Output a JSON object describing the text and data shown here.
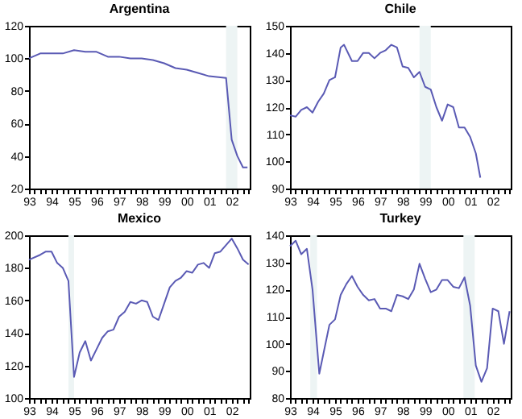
{
  "chart_data": [
    {
      "type": "line",
      "title": "Argentina",
      "xlim": [
        1993,
        2002.8
      ],
      "ylim": [
        20,
        120
      ],
      "yticks": [
        20,
        40,
        60,
        80,
        100,
        120
      ],
      "xticks": [
        {
          "value": 1993,
          "label": "93"
        },
        {
          "value": 1993.25,
          "label": null
        },
        {
          "value": 1993.5,
          "label": null
        },
        {
          "value": 1993.75,
          "label": null
        },
        {
          "value": 1994,
          "label": "94"
        },
        {
          "value": 1994.25,
          "label": null
        },
        {
          "value": 1994.5,
          "label": null
        },
        {
          "value": 1994.75,
          "label": null
        },
        {
          "value": 1995,
          "label": "95"
        },
        {
          "value": 1995.25,
          "label": null
        },
        {
          "value": 1995.5,
          "label": null
        },
        {
          "value": 1995.75,
          "label": null
        },
        {
          "value": 1996,
          "label": "96"
        },
        {
          "value": 1996.25,
          "label": null
        },
        {
          "value": 1996.5,
          "label": null
        },
        {
          "value": 1996.75,
          "label": null
        },
        {
          "value": 1997,
          "label": "97"
        },
        {
          "value": 1997.25,
          "label": null
        },
        {
          "value": 1997.5,
          "label": null
        },
        {
          "value": 1997.75,
          "label": null
        },
        {
          "value": 1998,
          "label": "98"
        },
        {
          "value": 1998.25,
          "label": null
        },
        {
          "value": 1998.5,
          "label": null
        },
        {
          "value": 1998.75,
          "label": null
        },
        {
          "value": 1999,
          "label": "99"
        },
        {
          "value": 1999.25,
          "label": null
        },
        {
          "value": 1999.5,
          "label": null
        },
        {
          "value": 1999.75,
          "label": null
        },
        {
          "value": 2000,
          "label": "00"
        },
        {
          "value": 2000.25,
          "label": null
        },
        {
          "value": 2000.5,
          "label": null
        },
        {
          "value": 2000.75,
          "label": null
        },
        {
          "value": 2001,
          "label": "01"
        },
        {
          "value": 2001.25,
          "label": null
        },
        {
          "value": 2001.5,
          "label": null
        },
        {
          "value": 2001.75,
          "label": null
        },
        {
          "value": 2002,
          "label": "02"
        },
        {
          "value": 2002.25,
          "label": null
        },
        {
          "value": 2002.5,
          "label": null
        },
        {
          "value": 2002.75,
          "label": null
        }
      ],
      "bands": [
        {
          "axis": "x",
          "from": 2001.75,
          "to": 2002.25,
          "color": "#edf4f4"
        }
      ],
      "series": [
        {
          "color": "#5a5ab4",
          "x": [
            1993,
            1993.5,
            1994,
            1994.5,
            1995,
            1995.5,
            1996,
            1996.5,
            1997,
            1997.5,
            1998,
            1998.5,
            1999,
            1999.5,
            2000,
            2000.5,
            2001,
            2001.75,
            2002,
            2002.25,
            2002.5,
            2002.7
          ],
          "values": [
            100,
            103,
            103,
            103,
            105,
            104,
            104,
            101,
            101,
            100,
            100,
            99,
            97,
            94,
            93,
            91,
            89,
            88,
            50,
            40,
            33,
            33
          ]
        }
      ]
    },
    {
      "type": "line",
      "title": "Chile",
      "xlim": [
        1993,
        2002.8
      ],
      "ylim": [
        90,
        150
      ],
      "yticks": [
        90,
        100,
        110,
        120,
        130,
        140,
        150
      ],
      "xticks": [
        {
          "value": 1993,
          "label": "93"
        },
        {
          "value": 1993.25,
          "label": null
        },
        {
          "value": 1993.5,
          "label": null
        },
        {
          "value": 1993.75,
          "label": null
        },
        {
          "value": 1994,
          "label": "94"
        },
        {
          "value": 1994.25,
          "label": null
        },
        {
          "value": 1994.5,
          "label": null
        },
        {
          "value": 1994.75,
          "label": null
        },
        {
          "value": 1995,
          "label": "95"
        },
        {
          "value": 1995.25,
          "label": null
        },
        {
          "value": 1995.5,
          "label": null
        },
        {
          "value": 1995.75,
          "label": null
        },
        {
          "value": 1996,
          "label": "96"
        },
        {
          "value": 1996.25,
          "label": null
        },
        {
          "value": 1996.5,
          "label": null
        },
        {
          "value": 1996.75,
          "label": null
        },
        {
          "value": 1997,
          "label": "97"
        },
        {
          "value": 1997.25,
          "label": null
        },
        {
          "value": 1997.5,
          "label": null
        },
        {
          "value": 1997.75,
          "label": null
        },
        {
          "value": 1998,
          "label": "98"
        },
        {
          "value": 1998.25,
          "label": null
        },
        {
          "value": 1998.5,
          "label": null
        },
        {
          "value": 1998.75,
          "label": null
        },
        {
          "value": 1999,
          "label": "99"
        },
        {
          "value": 1999.25,
          "label": null
        },
        {
          "value": 1999.5,
          "label": null
        },
        {
          "value": 1999.75,
          "label": null
        },
        {
          "value": 2000,
          "label": "00"
        },
        {
          "value": 2000.25,
          "label": null
        },
        {
          "value": 2000.5,
          "label": null
        },
        {
          "value": 2000.75,
          "label": null
        },
        {
          "value": 2001,
          "label": "01"
        },
        {
          "value": 2001.25,
          "label": null
        },
        {
          "value": 2001.5,
          "label": null
        },
        {
          "value": 2001.75,
          "label": null
        },
        {
          "value": 2002,
          "label": "02"
        },
        {
          "value": 2002.25,
          "label": null
        },
        {
          "value": 2002.5,
          "label": null
        },
        {
          "value": 2002.75,
          "label": null
        }
      ],
      "bands": [
        {
          "axis": "x",
          "from": 1998.75,
          "to": 1999.25,
          "color": "#edf4f4"
        }
      ],
      "series": [
        {
          "color": "#5a5ab4",
          "x": [
            1993,
            1993.25,
            1993.5,
            1993.75,
            1994,
            1994.25,
            1994.5,
            1994.75,
            1995,
            1995.25,
            1995.4,
            1995.75,
            1996,
            1996.25,
            1996.5,
            1996.75,
            1997,
            1997.25,
            1997.5,
            1997.75,
            1998,
            1998.25,
            1998.5,
            1998.75,
            1999,
            1999.25,
            1999.5,
            1999.75,
            2000,
            2000.25,
            2000.5,
            2000.75,
            2001,
            2001.25,
            2001.45
          ],
          "values": [
            117,
            116.5,
            119,
            120,
            118,
            122,
            125,
            130,
            131,
            142,
            143,
            137,
            137,
            140,
            140,
            138,
            140,
            141,
            143,
            142,
            135,
            134.5,
            131,
            133,
            127.5,
            126.5,
            120,
            115,
            121,
            120,
            112.5,
            112.5,
            109,
            103,
            94
          ]
        }
      ]
    },
    {
      "type": "line",
      "title": "Mexico",
      "xlim": [
        1993,
        2002.8
      ],
      "ylim": [
        100,
        200
      ],
      "yticks": [
        100,
        120,
        140,
        160,
        180,
        200
      ],
      "xticks": [
        {
          "value": 1993,
          "label": "93"
        },
        {
          "value": 1993.25,
          "label": null
        },
        {
          "value": 1993.5,
          "label": null
        },
        {
          "value": 1993.75,
          "label": null
        },
        {
          "value": 1994,
          "label": "94"
        },
        {
          "value": 1994.25,
          "label": null
        },
        {
          "value": 1994.5,
          "label": null
        },
        {
          "value": 1994.75,
          "label": null
        },
        {
          "value": 1995,
          "label": "95"
        },
        {
          "value": 1995.25,
          "label": null
        },
        {
          "value": 1995.5,
          "label": null
        },
        {
          "value": 1995.75,
          "label": null
        },
        {
          "value": 1996,
          "label": "96"
        },
        {
          "value": 1996.25,
          "label": null
        },
        {
          "value": 1996.5,
          "label": null
        },
        {
          "value": 1996.75,
          "label": null
        },
        {
          "value": 1997,
          "label": "97"
        },
        {
          "value": 1997.25,
          "label": null
        },
        {
          "value": 1997.5,
          "label": null
        },
        {
          "value": 1997.75,
          "label": null
        },
        {
          "value": 1998,
          "label": "98"
        },
        {
          "value": 1998.25,
          "label": null
        },
        {
          "value": 1998.5,
          "label": null
        },
        {
          "value": 1998.75,
          "label": null
        },
        {
          "value": 1999,
          "label": "99"
        },
        {
          "value": 1999.25,
          "label": null
        },
        {
          "value": 1999.5,
          "label": null
        },
        {
          "value": 1999.75,
          "label": null
        },
        {
          "value": 2000,
          "label": "00"
        },
        {
          "value": 2000.25,
          "label": null
        },
        {
          "value": 2000.5,
          "label": null
        },
        {
          "value": 2000.75,
          "label": null
        },
        {
          "value": 2001,
          "label": "01"
        },
        {
          "value": 2001.25,
          "label": null
        },
        {
          "value": 2001.5,
          "label": null
        },
        {
          "value": 2001.75,
          "label": null
        },
        {
          "value": 2002,
          "label": "02"
        },
        {
          "value": 2002.25,
          "label": null
        },
        {
          "value": 2002.5,
          "label": null
        },
        {
          "value": 2002.75,
          "label": null
        }
      ],
      "bands": [
        {
          "axis": "x",
          "from": 1994.75,
          "to": 1995,
          "color": "#edf4f4"
        }
      ],
      "series": [
        {
          "color": "#5a5ab4",
          "x": [
            1993,
            1993.5,
            1993.75,
            1994,
            1994.25,
            1994.5,
            1994.75,
            1995,
            1995.25,
            1995.5,
            1995.75,
            1996,
            1996.25,
            1996.5,
            1996.75,
            1997,
            1997.25,
            1997.5,
            1997.75,
            1998,
            1998.25,
            1998.5,
            1998.75,
            1999,
            1999.25,
            1999.5,
            1999.75,
            2000,
            2000.25,
            2000.5,
            2000.75,
            2001,
            2001.25,
            2001.5,
            2001.75,
            2002,
            2002.25,
            2002.5,
            2002.75
          ],
          "values": [
            185,
            188,
            190,
            190,
            183,
            180,
            172,
            113,
            128,
            135,
            123,
            130,
            137,
            141,
            142,
            150,
            153,
            159,
            158,
            160,
            159,
            150,
            148,
            158,
            168,
            172,
            174,
            178,
            177,
            182,
            183,
            180,
            189,
            190,
            194,
            198,
            192,
            185,
            182
          ]
        }
      ]
    },
    {
      "type": "line",
      "title": "Turkey",
      "xlim": [
        1993,
        2002.8
      ],
      "ylim": [
        80,
        140
      ],
      "yticks": [
        80,
        90,
        100,
        110,
        120,
        130,
        140
      ],
      "xticks": [
        {
          "value": 1993,
          "label": "93"
        },
        {
          "value": 1993.25,
          "label": null
        },
        {
          "value": 1993.5,
          "label": null
        },
        {
          "value": 1993.75,
          "label": null
        },
        {
          "value": 1994,
          "label": "94"
        },
        {
          "value": 1994.25,
          "label": null
        },
        {
          "value": 1994.5,
          "label": null
        },
        {
          "value": 1994.75,
          "label": null
        },
        {
          "value": 1995,
          "label": "95"
        },
        {
          "value": 1995.25,
          "label": null
        },
        {
          "value": 1995.5,
          "label": null
        },
        {
          "value": 1995.75,
          "label": null
        },
        {
          "value": 1996,
          "label": "96"
        },
        {
          "value": 1996.25,
          "label": null
        },
        {
          "value": 1996.5,
          "label": null
        },
        {
          "value": 1996.75,
          "label": null
        },
        {
          "value": 1997,
          "label": "97"
        },
        {
          "value": 1997.25,
          "label": null
        },
        {
          "value": 1997.5,
          "label": null
        },
        {
          "value": 1997.75,
          "label": null
        },
        {
          "value": 1998,
          "label": "98"
        },
        {
          "value": 1998.25,
          "label": null
        },
        {
          "value": 1998.5,
          "label": null
        },
        {
          "value": 1998.75,
          "label": null
        },
        {
          "value": 1999,
          "label": "99"
        },
        {
          "value": 1999.25,
          "label": null
        },
        {
          "value": 1999.5,
          "label": null
        },
        {
          "value": 1999.75,
          "label": null
        },
        {
          "value": 2000,
          "label": "00"
        },
        {
          "value": 2000.25,
          "label": null
        },
        {
          "value": 2000.5,
          "label": null
        },
        {
          "value": 2000.75,
          "label": null
        },
        {
          "value": 2001,
          "label": "01"
        },
        {
          "value": 2001.25,
          "label": null
        },
        {
          "value": 2001.5,
          "label": null
        },
        {
          "value": 2001.75,
          "label": null
        },
        {
          "value": 2002,
          "label": "02"
        },
        {
          "value": 2002.25,
          "label": null
        },
        {
          "value": 2002.5,
          "label": null
        },
        {
          "value": 2002.75,
          "label": null
        }
      ],
      "bands": [
        {
          "axis": "x",
          "from": 1993.9,
          "to": 1994.2,
          "color": "#edf4f4"
        },
        {
          "axis": "x",
          "from": 2000.7,
          "to": 2001.2,
          "color": "#edf4f4"
        }
      ],
      "series": [
        {
          "color": "#5a5ab4",
          "x": [
            1993,
            1993.25,
            1993.5,
            1993.75,
            1994,
            1994.3,
            1994.5,
            1994.75,
            1995,
            1995.25,
            1995.5,
            1995.75,
            1996,
            1996.25,
            1996.5,
            1996.75,
            1997,
            1997.25,
            1997.5,
            1997.75,
            1998,
            1998.25,
            1998.5,
            1998.75,
            1999,
            1999.25,
            1999.5,
            1999.75,
            2000,
            2000.25,
            2000.5,
            2000.75,
            2001,
            2001.25,
            2001.5,
            2001.75,
            2002,
            2002.25,
            2002.5,
            2002.75
          ],
          "values": [
            136,
            138,
            133,
            135,
            120,
            89,
            97,
            107,
            109,
            118,
            122,
            125,
            121,
            118,
            116,
            116.5,
            113,
            113,
            112,
            118,
            117.5,
            116.5,
            120,
            129.5,
            124,
            119,
            120,
            123.5,
            123.5,
            121,
            120.5,
            124.5,
            114,
            92,
            86,
            91,
            113,
            112,
            100,
            112
          ]
        }
      ]
    }
  ]
}
